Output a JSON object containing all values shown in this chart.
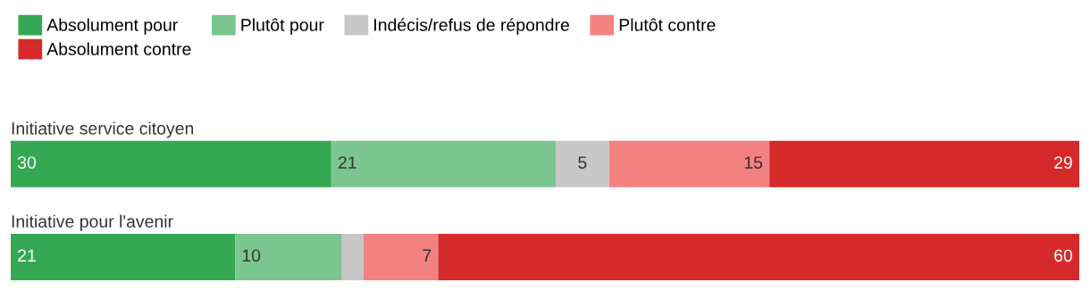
{
  "chart_data": {
    "type": "bar",
    "orientation": "horizontal",
    "stacked": true,
    "categories": [
      "Initiative service citoyen",
      "Initiative pour l'avenir"
    ],
    "series": [
      {
        "name": "Absolument pour",
        "color": "#34a853",
        "values": [
          30,
          21
        ],
        "value_labels": [
          "30",
          "21"
        ]
      },
      {
        "name": "Plutôt pour",
        "color": "#7bc68e",
        "values": [
          21,
          10
        ],
        "value_labels": [
          "21",
          "10"
        ]
      },
      {
        "name": "Indécis/refus de répondre",
        "color": "#c8c8c8",
        "values": [
          5,
          2
        ],
        "value_labels": [
          "5",
          null
        ]
      },
      {
        "name": "Plutôt contre",
        "color": "#f48181",
        "values": [
          15,
          7
        ],
        "value_labels": [
          "15",
          "7"
        ]
      },
      {
        "name": "Absolument contre",
        "color": "#d62a2a",
        "values": [
          29,
          60
        ],
        "value_labels": [
          "29",
          "60"
        ]
      }
    ],
    "xlim": [
      0,
      100
    ],
    "legend": "top left"
  }
}
